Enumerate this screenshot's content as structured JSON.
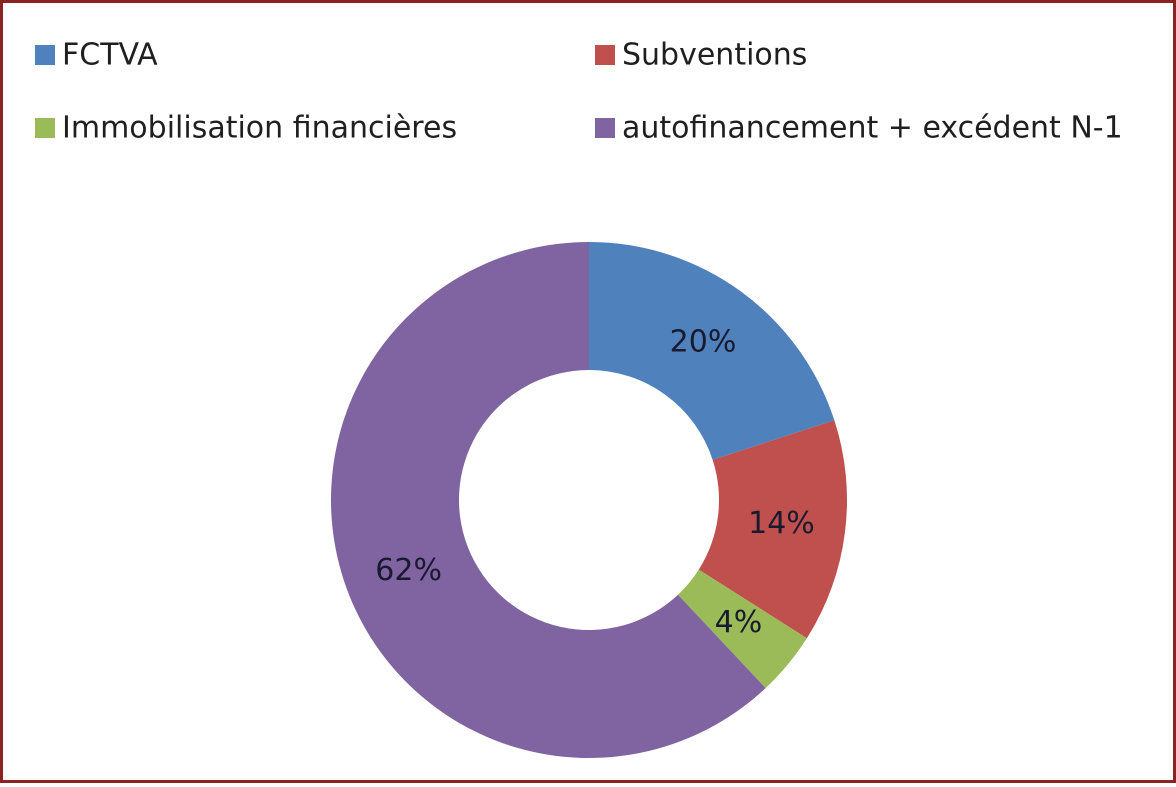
{
  "chart_data": {
    "type": "donut",
    "categories": [
      "FCTVA",
      "Subventions",
      "Immobilisation financières",
      "autofinancement + excédent N-1"
    ],
    "values": [
      20,
      14,
      4,
      62
    ],
    "value_labels": [
      "20%",
      "14%",
      "4%",
      "62%"
    ],
    "colors": [
      "#4f81bd",
      "#c0504d",
      "#9bbb59",
      "#8064a2"
    ]
  }
}
